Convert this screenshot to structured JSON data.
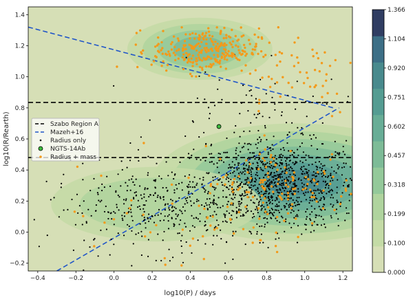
{
  "chart_data": {
    "type": "scatter",
    "xlabel": "log10(P) / days",
    "ylabel": "log10(R/Rearth)",
    "xlim": [
      -0.45,
      1.25
    ],
    "ylim": [
      -0.25,
      1.45
    ],
    "x_ticks": [
      "−0.4",
      "−0.2",
      "0.0",
      "0.2",
      "0.4",
      "0.6",
      "0.8",
      "1.0",
      "1.2"
    ],
    "x_tick_values": [
      -0.4,
      -0.2,
      0.0,
      0.2,
      0.4,
      0.6,
      0.8,
      1.0,
      1.2
    ],
    "y_ticks": [
      "−0.2",
      "0.0",
      "0.2",
      "0.4",
      "0.6",
      "0.8",
      "1.0",
      "1.2",
      "1.4"
    ],
    "y_tick_values": [
      -0.2,
      0.0,
      0.2,
      0.4,
      0.6,
      0.8,
      1.0,
      1.2,
      1.4
    ],
    "background_color": "#d6dfb6",
    "colorbar": {
      "ticks": [
        "0.000",
        "0.100",
        "0.199",
        "0.318",
        "0.457",
        "0.602",
        "0.751",
        "0.920",
        "1.104",
        "1.366"
      ],
      "tick_values": [
        0.0,
        0.1,
        0.199,
        0.318,
        0.457,
        0.602,
        0.751,
        0.92,
        1.104,
        1.366
      ],
      "colors": [
        "#d6dfb6",
        "#c4dba6",
        "#afd49e",
        "#94c99a",
        "#7dbb97",
        "#68ad96",
        "#559c92",
        "#498a8d",
        "#3d6f86",
        "#303d62"
      ]
    },
    "density_regions": [
      {
        "cx": 0.95,
        "cy": 0.32,
        "rx": [
          0.75,
          0.65,
          0.55,
          0.45,
          0.35,
          0.25,
          0.16
        ],
        "ry": [
          0.38,
          0.33,
          0.28,
          0.23,
          0.18,
          0.13,
          0.08
        ]
      },
      {
        "cx": 0.45,
        "cy": 1.18,
        "rx": [
          0.38,
          0.3,
          0.22,
          0.14
        ],
        "ry": [
          0.2,
          0.16,
          0.12,
          0.08
        ]
      },
      {
        "cx": 0.22,
        "cy": 0.18,
        "rx": [
          0.55,
          0.4
        ],
        "ry": [
          0.24,
          0.17
        ]
      }
    ],
    "lines": [
      {
        "name": "Szabo Region A",
        "style": "dashed",
        "color": "#000000",
        "y": 0.835
      },
      {
        "name": "Szabo Region A",
        "style": "dashed",
        "color": "#000000",
        "y": 0.48
      },
      {
        "name": "Mazeh+16",
        "style": "dashed",
        "color": "#1f55c8",
        "points": [
          [
            -0.45,
            1.32
          ],
          [
            1.15,
            0.8
          ]
        ]
      },
      {
        "name": "Mazeh+16",
        "style": "dashed",
        "color": "#1f55c8",
        "points": [
          [
            -0.3,
            -0.25
          ],
          [
            1.18,
            0.8
          ]
        ]
      }
    ],
    "series": [
      {
        "name": "Radius only",
        "color": "#000000",
        "clusters": [
          {
            "cx": 0.85,
            "cy": 0.3,
            "sx": 0.22,
            "sy": 0.14,
            "n": 950
          },
          {
            "cx": 0.25,
            "cy": 0.15,
            "sx": 0.3,
            "sy": 0.14,
            "n": 380
          },
          {
            "cx": 0.75,
            "cy": 0.75,
            "sx": 0.25,
            "sy": 0.15,
            "n": 90
          }
        ]
      },
      {
        "name": "Radius + mass",
        "color": "#f39a1b",
        "clusters": [
          {
            "cx": 0.48,
            "cy": 1.17,
            "sx": 0.14,
            "sy": 0.07,
            "n": 280
          },
          {
            "cx": 0.95,
            "cy": 1.05,
            "sx": 0.17,
            "sy": 0.16,
            "n": 50
          },
          {
            "cx": 0.9,
            "cy": 0.3,
            "sx": 0.22,
            "sy": 0.13,
            "n": 140
          },
          {
            "cx": 0.3,
            "cy": 0.05,
            "sx": 0.35,
            "sy": 0.17,
            "n": 40
          }
        ]
      }
    ],
    "highlight": {
      "name": "NGTS-14Ab",
      "x": 0.55,
      "y": 0.68,
      "color": "#3db93d"
    },
    "legend": {
      "placement": "center-left",
      "entries": [
        "Szabo Region A",
        "Mazeh+16",
        "Radius only",
        "NGTS-14Ab",
        "Radius + mass"
      ]
    }
  }
}
